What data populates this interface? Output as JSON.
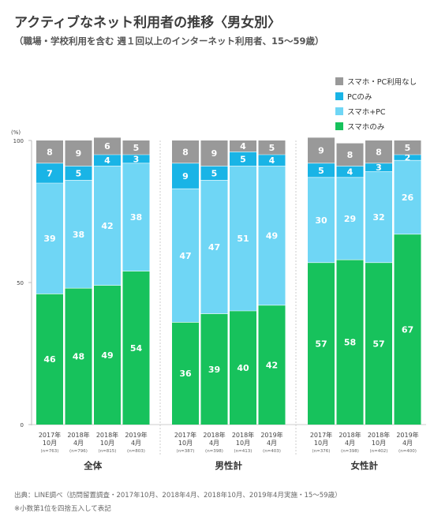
{
  "title": "アクティブなネット利用者の推移〈男女別〉",
  "subtitle": "（職場・学校利用を含む 週１回以上のインターネット利用者、15〜59歳）",
  "legend": [
    {
      "label": "スマホ・PC利用なし",
      "color": "#999999"
    },
    {
      "label": "PCのみ",
      "color": "#19b4e6"
    },
    {
      "label": "スマホ+PC",
      "color": "#6fd6f5"
    },
    {
      "label": "スマホのみ",
      "color": "#17c25c"
    }
  ],
  "footnotes": [
    "出典：LINE調べ（訪問留置調査・2017年10月、2018年4月、2018年10月、2019年4月実施・15〜59歳）",
    "※小数第1位を四捨五入して表記"
  ],
  "chart_data": {
    "type": "bar",
    "stacked": true,
    "unit_label": "(%)",
    "ylim": [
      0,
      100
    ],
    "yticks": [
      0,
      50,
      100
    ],
    "series": [
      {
        "name": "スマホのみ",
        "color": "#17c25c"
      },
      {
        "name": "スマホ+PC",
        "color": "#6fd6f5"
      },
      {
        "name": "PCのみ",
        "color": "#19b4e6"
      },
      {
        "name": "スマホ・PC利用なし",
        "color": "#999999"
      }
    ],
    "groups": [
      {
        "name": "全体",
        "bars": [
          {
            "year": "2017年",
            "month": "10月",
            "n": "(n=763)",
            "values": [
              46,
              39,
              7,
              8
            ]
          },
          {
            "year": "2018年",
            "month": "4月",
            "n": "(n=796)",
            "values": [
              48,
              38,
              5,
              9
            ]
          },
          {
            "year": "2018年",
            "month": "10月",
            "n": "(n=815)",
            "values": [
              49,
              42,
              4,
              6
            ]
          },
          {
            "year": "2019年",
            "month": "4月",
            "n": "(n=803)",
            "values": [
              54,
              38,
              3,
              5
            ]
          }
        ]
      },
      {
        "name": "男性計",
        "bars": [
          {
            "year": "2017年",
            "month": "10月",
            "n": "(n=387)",
            "values": [
              36,
              47,
              9,
              8
            ]
          },
          {
            "year": "2018年",
            "month": "4月",
            "n": "(n=398)",
            "values": [
              39,
              47,
              5,
              9
            ]
          },
          {
            "year": "2018年",
            "month": "10月",
            "n": "(n=413)",
            "values": [
              40,
              51,
              5,
              4
            ]
          },
          {
            "year": "2019年",
            "month": "4月",
            "n": "(n=403)",
            "values": [
              42,
              49,
              4,
              5
            ]
          }
        ]
      },
      {
        "name": "女性計",
        "bars": [
          {
            "year": "2017年",
            "month": "10月",
            "n": "(n=376)",
            "values": [
              57,
              30,
              5,
              9
            ]
          },
          {
            "year": "2018年",
            "month": "4月",
            "n": "(n=398)",
            "values": [
              58,
              29,
              4,
              8
            ]
          },
          {
            "year": "2018年",
            "month": "10月",
            "n": "(n=402)",
            "values": [
              57,
              32,
              3,
              8
            ]
          },
          {
            "year": "2019年",
            "month": "4月",
            "n": "(n=400)",
            "values": [
              67,
              26,
              2,
              5
            ]
          }
        ]
      }
    ]
  }
}
